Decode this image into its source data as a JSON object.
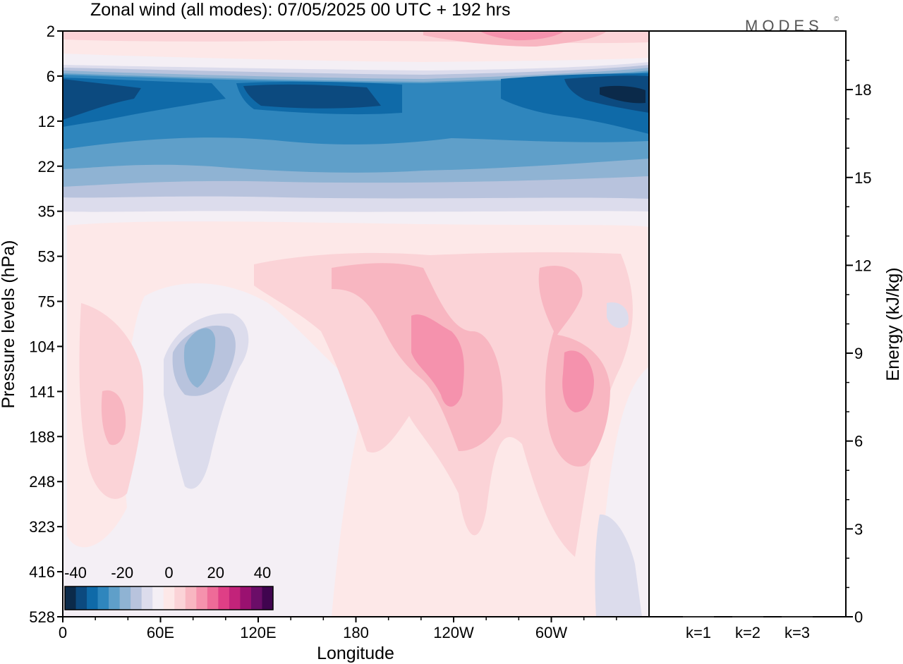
{
  "title": "Zonal wind (all modes):  07/05/2025  00 UTC  + 192 hrs",
  "logo": "MODES",
  "logo_mark": "©",
  "chart_data": [
    {
      "type": "heatmap",
      "title": "Zonal wind (all modes):  07/05/2025  00 UTC  + 192 hrs",
      "xlabel": "Longitude",
      "ylabel": "Pressure levels (hPa)",
      "x_ticks": [
        "0",
        "60E",
        "120E",
        "180",
        "120W",
        "60W"
      ],
      "x_tick_values": [
        0,
        60,
        120,
        180,
        240,
        300
      ],
      "xlim": [
        0,
        360
      ],
      "y_ticks": [
        "2",
        "6",
        "12",
        "22",
        "35",
        "53",
        "75",
        "104",
        "141",
        "188",
        "248",
        "323",
        "416",
        "528"
      ],
      "colorbar": {
        "ticks": [
          "-40",
          "-20",
          "0",
          "20",
          "40"
        ],
        "range": [
          -40,
          40
        ],
        "colors": [
          "#0b2a4a",
          "#0c4a7f",
          "#0f6aa8",
          "#2f86bd",
          "#5f9fc9",
          "#8fb3d3",
          "#b8c3dd",
          "#dcdcec",
          "#f4eff5",
          "#fde8e8",
          "#fbd3d7",
          "#f8b6c1",
          "#f592ad",
          "#ee6b98",
          "#df3f86",
          "#c2237a",
          "#9a1170",
          "#6b0d68",
          "#40044f"
        ],
        "placement": "bottom-left"
      },
      "features": [
        {
          "region": "upper stratosphere (2-4 hPa)",
          "sign": "westerly",
          "max": 15
        },
        {
          "region": "6-20 hPa band",
          "sign": "easterly",
          "min": -40
        },
        {
          "region": "75-200 hPa, ~90E",
          "sign": "easterly",
          "min": -12
        },
        {
          "region": "80-200 hPa, ~120W-100W",
          "sign": "westerly",
          "max": 18
        },
        {
          "region": "100-200 hPa, ~70W",
          "sign": "westerly",
          "max": 18
        }
      ]
    },
    {
      "type": "bar",
      "ylabel": "Energy (kJ/kg)",
      "categories": [
        "k=1",
        "k=2",
        "k=3"
      ],
      "values": [
        0.02,
        0.01,
        0.01
      ],
      "ylim": [
        0,
        20
      ],
      "y_ticks": [
        "0",
        "3",
        "6",
        "9",
        "12",
        "15",
        "18"
      ]
    }
  ]
}
